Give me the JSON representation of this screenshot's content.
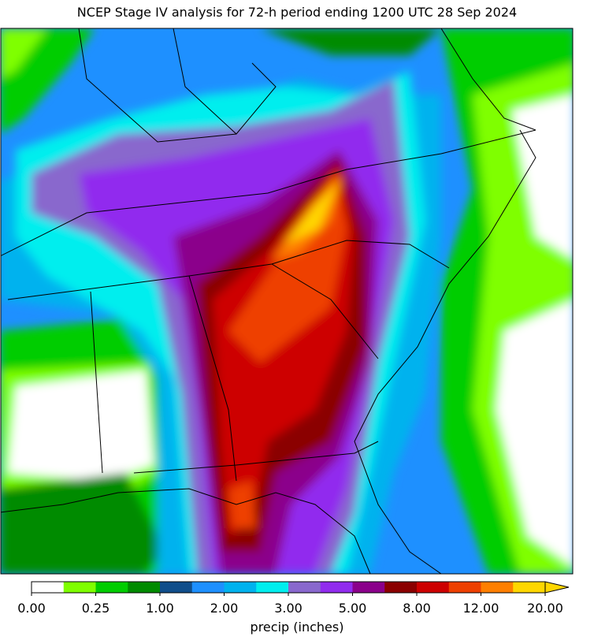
{
  "title": "NCEP Stage IV analysis for 72-h period ending 1200 UTC 28 Sep 2024",
  "colorbar": {
    "label": "precip (inches)",
    "bounds": [
      0,
      0.1,
      0.25,
      0.5,
      1,
      1.5,
      2,
      2.5,
      3,
      4,
      5,
      6,
      8,
      10,
      12,
      15,
      20
    ],
    "colors": [
      "#ffffff",
      "#7fff00",
      "#00cd00",
      "#008b00",
      "#104e8b",
      "#1e90ff",
      "#00b2ee",
      "#00eeee",
      "#8968cd",
      "#912cee",
      "#8b008b",
      "#8b0000",
      "#cd0000",
      "#ee4000",
      "#ff7f00",
      "#ffd700"
    ],
    "extend": "max",
    "ticks": [
      {
        "value": 0,
        "label": "0.00"
      },
      {
        "value": 0.25,
        "label": "0.25"
      },
      {
        "value": 1,
        "label": "1.00"
      },
      {
        "value": 2,
        "label": "2.00"
      },
      {
        "value": 3,
        "label": "3.00"
      },
      {
        "value": 5,
        "label": "5.00"
      },
      {
        "value": 8,
        "label": "8.00"
      },
      {
        "value": 12,
        "label": "12.00"
      },
      {
        "value": 20,
        "label": "20.00"
      }
    ]
  }
}
